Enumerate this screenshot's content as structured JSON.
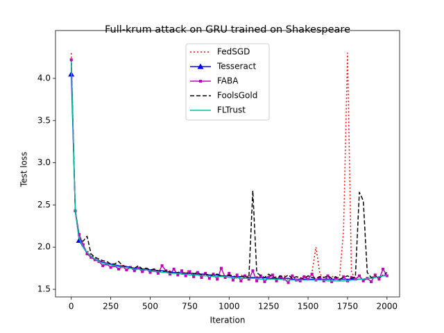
{
  "chart_data": {
    "type": "line",
    "title": "Full-krum attack on GRU trained on Shakespeare",
    "x_label": "Iteration",
    "y_label": "Test loss",
    "xlim": [
      -100,
      2080
    ],
    "ylim": [
      1.41,
      4.567
    ],
    "xticks": [
      0,
      250,
      500,
      750,
      1000,
      1250,
      1500,
      1750,
      2000
    ],
    "yticks": [
      1.5,
      {
        "value": 2.0,
        "label": "2.0"
      },
      2.5,
      {
        "value": 3.0,
        "label": "3.0"
      },
      3.5,
      {
        "value": 4.0,
        "label": "4.0"
      }
    ],
    "legend": "upper center",
    "x": [
      0,
      25,
      50,
      75,
      100,
      125,
      150,
      175,
      200,
      225,
      250,
      275,
      300,
      325,
      350,
      375,
      400,
      425,
      450,
      475,
      500,
      525,
      550,
      575,
      600,
      625,
      650,
      675,
      700,
      725,
      750,
      775,
      800,
      825,
      850,
      875,
      900,
      925,
      950,
      975,
      1000,
      1025,
      1050,
      1075,
      1100,
      1125,
      1150,
      1175,
      1200,
      1225,
      1250,
      1275,
      1300,
      1325,
      1350,
      1375,
      1400,
      1425,
      1450,
      1475,
      1500,
      1525,
      1550,
      1575,
      1600,
      1625,
      1650,
      1675,
      1700,
      1725,
      1750,
      1775,
      1800,
      1825,
      1850,
      1875,
      1900,
      1925,
      1950,
      1975,
      2000
    ],
    "series": [
      {
        "name": "FedSGD",
        "color": "#ff0000",
        "linestyle": "dotted",
        "values": [
          4.3,
          2.42,
          2.1,
          2.0,
          1.96,
          1.9,
          1.88,
          1.84,
          1.83,
          1.8,
          1.79,
          1.8,
          1.77,
          1.79,
          1.76,
          1.77,
          1.74,
          1.76,
          1.73,
          1.75,
          1.72,
          1.74,
          1.71,
          1.73,
          1.7,
          1.72,
          1.69,
          1.71,
          1.68,
          1.7,
          1.73,
          1.68,
          1.7,
          1.67,
          1.69,
          1.66,
          1.68,
          1.65,
          1.67,
          1.64,
          1.66,
          1.65,
          1.63,
          1.67,
          1.64,
          1.66,
          1.63,
          1.65,
          1.64,
          1.62,
          1.66,
          1.64,
          1.65,
          1.63,
          1.66,
          1.62,
          1.64,
          1.65,
          1.63,
          1.66,
          1.64,
          1.7,
          2.0,
          1.68,
          1.64,
          1.63,
          1.66,
          1.62,
          1.65,
          2.2,
          4.3,
          1.7,
          1.63,
          1.65,
          1.62,
          1.64,
          1.63,
          1.66,
          1.64,
          1.67,
          1.68
        ]
      },
      {
        "name": "Tesseract",
        "color": "#0000ff",
        "linestyle": "solid",
        "marker": "triangle",
        "markevery": [
          0,
          2
        ],
        "values": [
          4.05,
          2.45,
          2.08,
          2.0,
          1.93,
          1.89,
          1.86,
          1.84,
          1.82,
          1.81,
          1.8,
          1.79,
          1.78,
          1.77,
          1.77,
          1.76,
          1.75,
          1.75,
          1.74,
          1.74,
          1.73,
          1.73,
          1.72,
          1.72,
          1.71,
          1.71,
          1.7,
          1.7,
          1.7,
          1.69,
          1.69,
          1.69,
          1.68,
          1.68,
          1.68,
          1.67,
          1.67,
          1.67,
          1.66,
          1.66,
          1.66,
          1.65,
          1.65,
          1.65,
          1.65,
          1.64,
          1.64,
          1.64,
          1.64,
          1.64,
          1.63,
          1.63,
          1.63,
          1.63,
          1.63,
          1.63,
          1.62,
          1.62,
          1.62,
          1.62,
          1.62,
          1.62,
          1.62,
          1.62,
          1.62,
          1.62,
          1.62,
          1.62,
          1.62,
          1.62,
          1.62,
          1.62,
          1.62,
          1.62,
          1.62,
          1.63,
          1.63,
          1.64,
          1.65,
          1.66,
          1.67
        ]
      },
      {
        "name": "FABA",
        "color": "#bf00bf",
        "linestyle": "solid",
        "marker": "square",
        "values": [
          4.22,
          2.43,
          2.15,
          2.03,
          1.92,
          1.88,
          1.85,
          1.83,
          1.78,
          1.8,
          1.76,
          1.78,
          1.74,
          1.77,
          1.73,
          1.76,
          1.72,
          1.75,
          1.71,
          1.74,
          1.7,
          1.73,
          1.69,
          1.78,
          1.72,
          1.68,
          1.74,
          1.67,
          1.72,
          1.66,
          1.71,
          1.65,
          1.7,
          1.64,
          1.69,
          1.63,
          1.68,
          1.62,
          1.75,
          1.64,
          1.69,
          1.61,
          1.67,
          1.6,
          1.66,
          1.62,
          1.72,
          1.6,
          1.66,
          1.59,
          1.64,
          1.67,
          1.6,
          1.65,
          1.62,
          1.58,
          1.66,
          1.61,
          1.6,
          1.65,
          1.62,
          1.68,
          1.61,
          1.64,
          1.6,
          1.66,
          1.59,
          1.63,
          1.61,
          1.65,
          1.6,
          1.64,
          1.62,
          1.66,
          1.6,
          1.63,
          1.59,
          1.67,
          1.62,
          1.74,
          1.66
        ]
      },
      {
        "name": "FoolsGold",
        "color": "#000000",
        "linestyle": "dashed",
        "values": [
          4.2,
          2.44,
          2.1,
          2.07,
          2.13,
          1.92,
          1.88,
          1.86,
          1.84,
          1.83,
          1.8,
          1.8,
          1.83,
          1.78,
          1.77,
          1.76,
          1.75,
          1.78,
          1.74,
          1.75,
          1.73,
          1.74,
          1.72,
          1.71,
          1.72,
          1.7,
          1.69,
          1.7,
          1.68,
          1.7,
          1.69,
          1.68,
          1.7,
          1.67,
          1.68,
          1.66,
          1.67,
          1.68,
          1.66,
          1.65,
          1.67,
          1.66,
          1.64,
          1.65,
          1.66,
          1.63,
          2.67,
          1.7,
          1.66,
          1.64,
          1.68,
          1.65,
          1.63,
          1.66,
          1.64,
          1.67,
          1.63,
          1.65,
          1.64,
          1.62,
          1.66,
          1.64,
          1.63,
          1.65,
          1.64,
          1.66,
          1.63,
          1.65,
          1.62,
          1.64,
          1.66,
          1.63,
          1.65,
          2.65,
          2.55,
          1.7,
          1.64,
          1.66,
          1.63,
          1.67,
          1.7
        ]
      },
      {
        "name": "FLTrust",
        "color": "#00bfa0",
        "linestyle": "solid",
        "values": [
          4.2,
          2.42,
          2.1,
          2.0,
          1.94,
          1.89,
          1.86,
          1.83,
          1.81,
          1.8,
          1.79,
          1.78,
          1.77,
          1.76,
          1.76,
          1.75,
          1.74,
          1.74,
          1.73,
          1.73,
          1.72,
          1.71,
          1.71,
          1.7,
          1.7,
          1.69,
          1.69,
          1.69,
          1.68,
          1.68,
          1.67,
          1.67,
          1.67,
          1.66,
          1.66,
          1.66,
          1.65,
          1.65,
          1.65,
          1.65,
          1.64,
          1.64,
          1.64,
          1.63,
          1.63,
          1.63,
          1.63,
          1.63,
          1.62,
          1.62,
          1.62,
          1.62,
          1.62,
          1.62,
          1.61,
          1.61,
          1.61,
          1.61,
          1.61,
          1.61,
          1.61,
          1.61,
          1.61,
          1.61,
          1.61,
          1.6,
          1.6,
          1.6,
          1.6,
          1.6,
          1.6,
          1.61,
          1.61,
          1.62,
          1.62,
          1.63,
          1.63,
          1.64,
          1.65,
          1.66,
          1.66
        ]
      }
    ]
  }
}
